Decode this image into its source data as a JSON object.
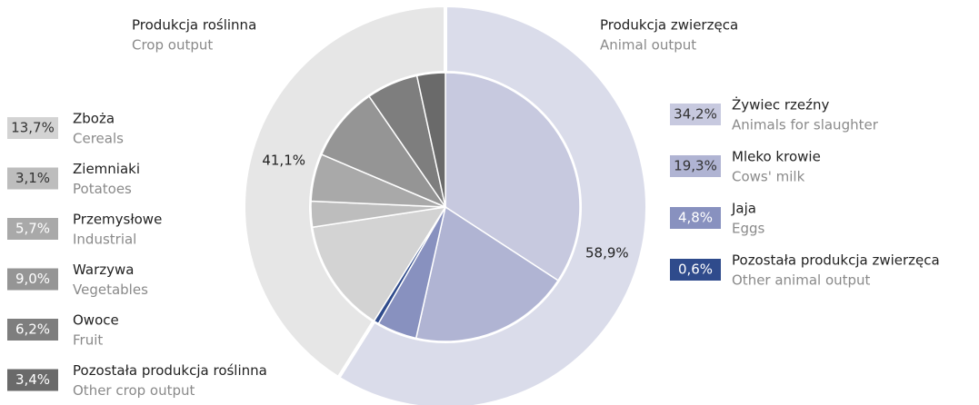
{
  "chart_data": {
    "type": "pie",
    "groups": [
      {
        "name": "Produkcja zwierzęca",
        "name_en": "Animal output",
        "value": 58.9,
        "value_label": "58,9%",
        "color": "#dadcea",
        "items": {
          "categories": [
            "Żywiec rzeźny",
            "Mleko krowie",
            "Jaja",
            "Pozostała produkcja zwierzęca"
          ],
          "categories_en": [
            "Animals for slaughter",
            "Cows'  milk",
            "Eggs",
            "Other animal output"
          ],
          "values": [
            34.2,
            19.3,
            4.8,
            0.6
          ],
          "value_labels": [
            "34,2%",
            "19,3%",
            "4,8%",
            "0,6%"
          ],
          "colors": [
            "#c7c9df",
            "#b0b4d3",
            "#8891bf",
            "#2f4b8c"
          ]
        }
      },
      {
        "name": "Produkcja roślinna",
        "name_en": "Crop output",
        "value": 41.1,
        "value_label": "41,1%",
        "color": "#e6e6e6",
        "items": {
          "categories": [
            "Zboża",
            "Ziemniaki",
            "Przemysłowe",
            "Warzywa",
            "Owoce",
            "Pozostała produkcja roślinna"
          ],
          "categories_en": [
            "Cereals",
            "Potatoes",
            "Industrial",
            "Vegetables",
            "Fruit",
            "Other crop output"
          ],
          "values": [
            13.7,
            3.1,
            5.7,
            9.0,
            6.2,
            3.4
          ],
          "value_labels": [
            "13,7%",
            "3,1%",
            "5,7%",
            "9,0%",
            "6,2%",
            "3,4%"
          ],
          "colors": [
            "#d3d3d3",
            "#bdbdbd",
            "#a9a9a9",
            "#959595",
            "#7e7e7e",
            "#6a6a6a"
          ]
        }
      }
    ]
  }
}
